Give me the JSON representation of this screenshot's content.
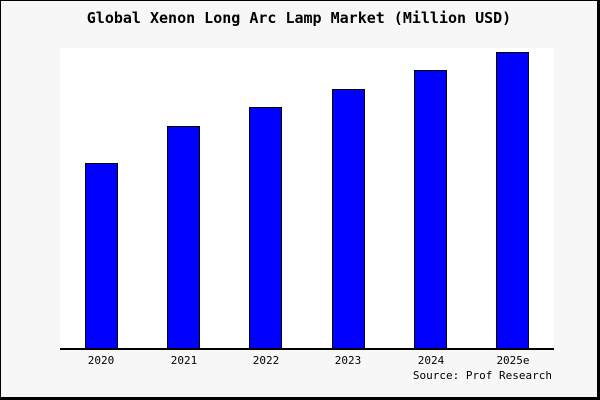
{
  "frame": {
    "background_color": "#f7f7f7",
    "border_color": "#000000"
  },
  "source": "Source: Prof Research",
  "chart_data": {
    "type": "bar",
    "title": "Global Xenon Long Arc Lamp Market (Million USD)",
    "categories": [
      "2020",
      "2021",
      "2022",
      "2023",
      "2024",
      "2025e"
    ],
    "values": [
      100,
      120,
      130,
      140,
      150,
      160
    ],
    "xlabel": "",
    "ylabel": "",
    "ylim": [
      0,
      162
    ],
    "grid": false,
    "y_axis_visible": false,
    "legend": "none",
    "bar_color": "#0000ff",
    "bar_edge_color": "#000000",
    "plot_background": "#ffffff"
  }
}
